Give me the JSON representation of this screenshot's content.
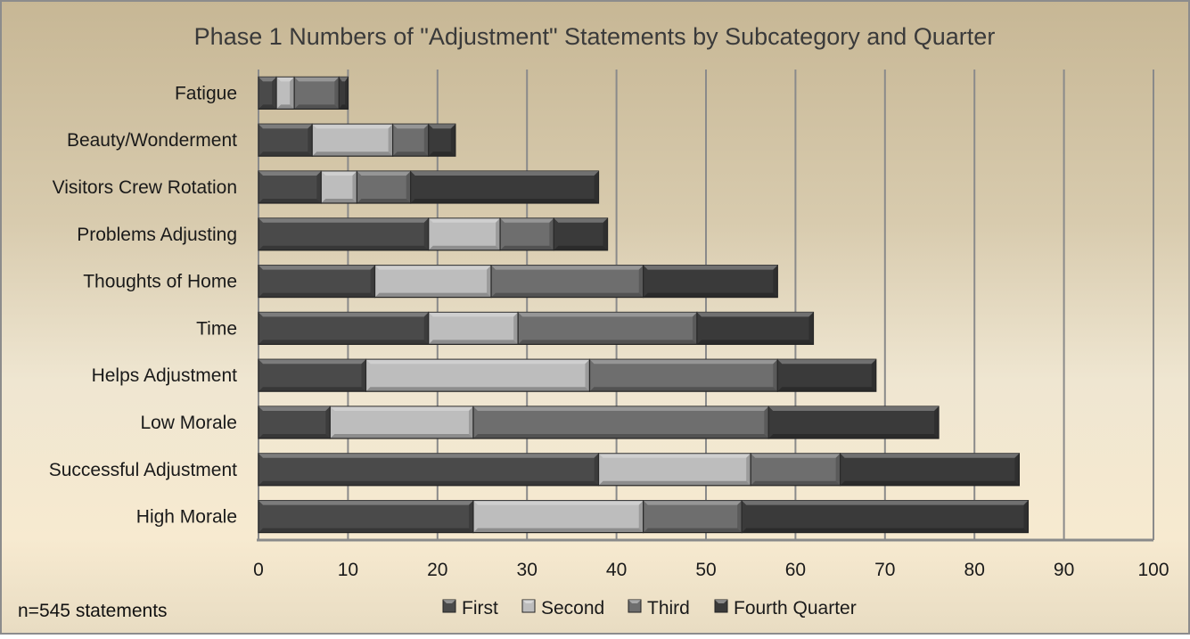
{
  "chart_data": {
    "type": "bar",
    "orientation": "horizontal",
    "stacked": true,
    "title": "Phase 1 Numbers of \"Adjustment\" Statements by Subcategory and Quarter",
    "categories": [
      "Fatigue",
      "Beauty/Wonderment",
      "Visitors Crew Rotation",
      "Problems Adjusting",
      "Thoughts of Home",
      "Time",
      "Helps Adjustment",
      "Low Morale",
      "Successful Adjustment",
      "High Morale"
    ],
    "series": [
      {
        "name": "First",
        "color": "#4a4a4a",
        "values": [
          2,
          6,
          7,
          19,
          13,
          19,
          12,
          8,
          38,
          24
        ]
      },
      {
        "name": "Second",
        "color": "#bdbdbd",
        "values": [
          2,
          9,
          4,
          8,
          13,
          10,
          25,
          16,
          17,
          19
        ]
      },
      {
        "name": "Third",
        "color": "#6e6e6e",
        "values": [
          5,
          4,
          6,
          6,
          17,
          20,
          21,
          33,
          10,
          11
        ]
      },
      {
        "name": "Fourth Quarter",
        "color": "#3a3a3a",
        "values": [
          1,
          3,
          21,
          6,
          15,
          13,
          11,
          19,
          20,
          32
        ]
      }
    ],
    "xlim": [
      0,
      100
    ],
    "x_ticks": [
      "0",
      "10",
      "20",
      "30",
      "40",
      "50",
      "60",
      "70",
      "80",
      "90",
      "100"
    ],
    "grid": true,
    "legend": "bottom",
    "note": "n=545 statements"
  }
}
